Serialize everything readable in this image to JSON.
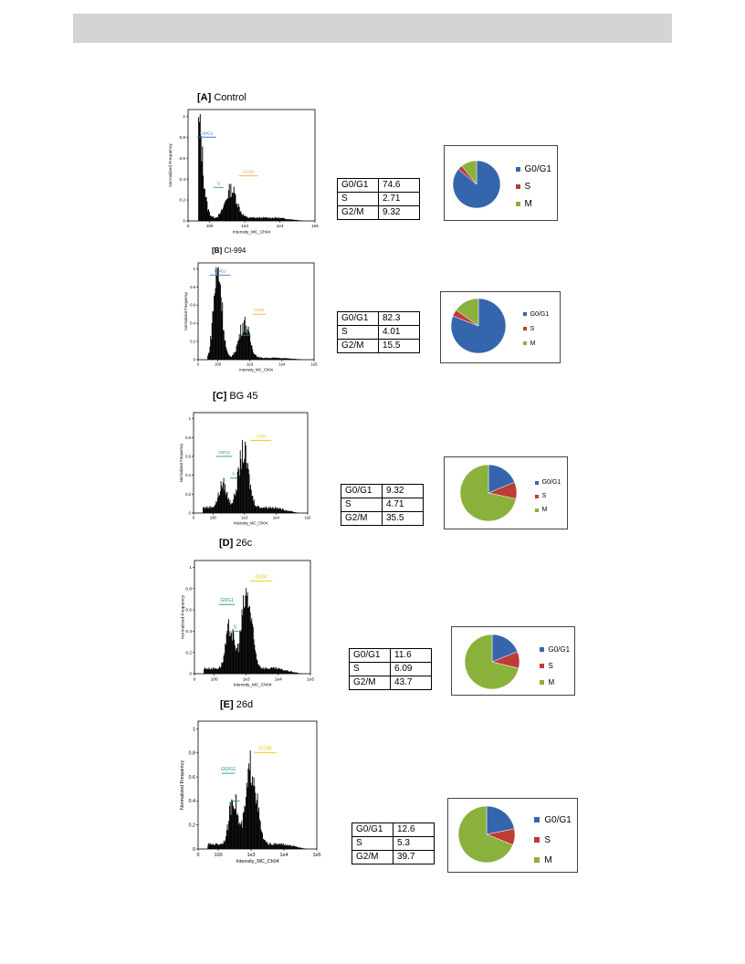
{
  "colors": {
    "g0g1": "#3566ad",
    "s": "#bf3b35",
    "m": "#8bb13d",
    "bar_gate_g0g1": "#3c78c0",
    "bar_gate_s": "#2f9a49",
    "bar_gate_g2m": "#f2a93b",
    "bar_gate_g2m_alt": "#f5c400",
    "bar_gate_g0g1_alt": "#2e8b8b"
  },
  "panels": [
    {
      "letter": "[A]",
      "name": "Control",
      "gates": {
        "g0g1": "G0/G1",
        "s": "S",
        "g2m": "G2/M"
      },
      "table": [
        {
          "label": "G0/G1",
          "value": "74.6"
        },
        {
          "label": "S",
          "value": "2.71"
        },
        {
          "label": "G2/M",
          "value": "9.32"
        }
      ],
      "legend": [
        "G0/G1",
        "S",
        "M"
      ]
    },
    {
      "letter": "[B]",
      "name": "CI-994",
      "gates": {
        "g0g1": "G0/G1",
        "s": "S",
        "g2m": "G2/M"
      },
      "table": [
        {
          "label": "G0/G1",
          "value": "82.3"
        },
        {
          "label": "S",
          "value": "4.01"
        },
        {
          "label": "G2/M",
          "value": "15.5"
        }
      ],
      "legend": [
        "G0/G1",
        "S",
        "M"
      ]
    },
    {
      "letter": "[C]",
      "name": "BG 45",
      "gates": {
        "g0g1": "G0/G1",
        "s": "S",
        "g2m": "G2/M"
      },
      "table": [
        {
          "label": "G0/G1",
          "value": "9.32"
        },
        {
          "label": "S",
          "value": "4.71"
        },
        {
          "label": "G2/M",
          "value": "35.5"
        }
      ],
      "legend": [
        "G0/G1",
        "S",
        "M"
      ]
    },
    {
      "letter": "[D]",
      "name": "26c",
      "gates": {
        "g0g1": "G0/G1",
        "s": "S",
        "g2m": "G2/M"
      },
      "table": [
        {
          "label": "G0/G1",
          "value": "11.6"
        },
        {
          "label": "S",
          "value": "6.09"
        },
        {
          "label": "G2/M",
          "value": "43.7"
        }
      ],
      "legend": [
        "G0/G1",
        "S",
        "M"
      ]
    },
    {
      "letter": "[E]",
      "name": "26d",
      "gates": {
        "g0g1": "G0/G1",
        "s": "S",
        "g2m": "G2/M"
      },
      "table": [
        {
          "label": "G0/G1",
          "value": "12.6"
        },
        {
          "label": "S",
          "value": "5.3"
        },
        {
          "label": "G2/M",
          "value": "39.7"
        }
      ],
      "legend": [
        "G0/G1",
        "S",
        "M"
      ]
    }
  ],
  "chart_data": [
    {
      "type": "area",
      "title": "[A] Control",
      "xlabel": "Intensity_MC_Ch04",
      "ylabel": "Normalized Frequency",
      "xscale": "log",
      "xlim": [
        0,
        100000
      ],
      "ylim": [
        0,
        1
      ],
      "x_ticks": [
        "0",
        "100",
        "1e3",
        "1e4",
        "1e5"
      ],
      "y_ticks": [
        "0",
        "0.2",
        "0.4",
        "0.6",
        "0.8",
        "1"
      ],
      "peaks": [
        {
          "x": 50,
          "y": 0.88
        },
        {
          "x": 400,
          "y": 0.27
        }
      ],
      "baseline": 0.03
    },
    {
      "type": "area",
      "title": "[B] CI-994",
      "xlabel": "Intensity_MC_Ch04",
      "ylabel": "Normalized Frequency",
      "xscale": "log",
      "xlim": [
        0,
        100000
      ],
      "ylim": [
        0,
        1
      ],
      "x_ticks": [
        "0",
        "100",
        "1e3",
        "1e4",
        "1e5"
      ],
      "y_ticks": [
        "0",
        "0.2",
        "0.4",
        "0.6",
        "0.8",
        "1"
      ],
      "peaks": [
        {
          "x": 100,
          "y": 0.95
        },
        {
          "x": 650,
          "y": 0.38
        }
      ],
      "baseline": 0.02
    },
    {
      "type": "area",
      "title": "[C] BG 45",
      "xlabel": "Intensity_MC_Ch04",
      "ylabel": "Normalized Frequency",
      "xscale": "log",
      "xlim": [
        0,
        100000
      ],
      "ylim": [
        0,
        1
      ],
      "x_ticks": [
        "0",
        "100",
        "1e3",
        "1e4",
        "1e5"
      ],
      "y_ticks": [
        "0",
        "0.2",
        "0.4",
        "0.6",
        "0.8",
        "1"
      ],
      "peaks": [
        {
          "x": 200,
          "y": 0.25
        },
        {
          "x": 900,
          "y": 0.58
        }
      ],
      "baseline": 0.06
    },
    {
      "type": "area",
      "title": "[D] 26c",
      "xlabel": "Intensity_MC_Ch04",
      "ylabel": "Normalized Frequency",
      "xscale": "log",
      "xlim": [
        0,
        100000
      ],
      "ylim": [
        0,
        1
      ],
      "x_ticks": [
        "0",
        "100",
        "1e3",
        "1e4",
        "1e5"
      ],
      "y_ticks": [
        "0",
        "0.2",
        "0.4",
        "0.6",
        "0.8",
        "1"
      ],
      "peaks": [
        {
          "x": 300,
          "y": 0.38
        },
        {
          "x": 1000,
          "y": 0.68
        }
      ],
      "baseline": 0.05
    },
    {
      "type": "area",
      "title": "[E] 26d",
      "xlabel": "Intensity_MC_Ch04",
      "ylabel": "Normalized Frequency",
      "xscale": "log",
      "xlim": [
        0,
        100000
      ],
      "ylim": [
        0,
        1
      ],
      "x_ticks": [
        "0",
        "100",
        "1e3",
        "1e4",
        "1e5"
      ],
      "y_ticks": [
        "0",
        "0.2",
        "0.4",
        "0.6",
        "0.8",
        "1"
      ],
      "peaks": [
        {
          "x": 280,
          "y": 0.4
        },
        {
          "x": 1000,
          "y": 0.65
        }
      ],
      "baseline": 0.04
    },
    {
      "type": "pie",
      "title": "[A] Control",
      "labels": [
        "G0/G1",
        "S",
        "M"
      ],
      "values": [
        74.6,
        2.71,
        9.32
      ]
    },
    {
      "type": "pie",
      "title": "[B] CI-994",
      "labels": [
        "G0/G1",
        "S",
        "M"
      ],
      "values": [
        82.3,
        4.01,
        15.5
      ]
    },
    {
      "type": "pie",
      "title": "[C] BG 45",
      "labels": [
        "G0/G1",
        "S",
        "M"
      ],
      "values": [
        9.32,
        4.71,
        35.5
      ]
    },
    {
      "type": "pie",
      "title": "[D] 26c",
      "labels": [
        "G0/G1",
        "S",
        "M"
      ],
      "values": [
        11.6,
        6.09,
        43.7
      ]
    },
    {
      "type": "pie",
      "title": "[E] 26d",
      "labels": [
        "G0/G1",
        "S",
        "M"
      ],
      "values": [
        12.6,
        5.3,
        39.7
      ]
    }
  ]
}
